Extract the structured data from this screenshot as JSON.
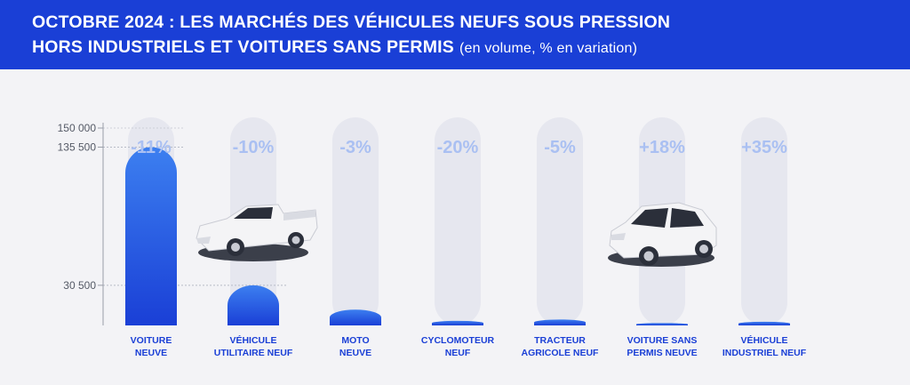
{
  "header": {
    "title_line1": "OCTOBRE 2024 : LES MARCHÉS DES VÉHICULES NEUFS SOUS PRESSION",
    "title_line2": "HORS INDUSTRIELS ET VOITURES SANS PERMIS",
    "subtitle": "(en volume, % en variation)"
  },
  "colors": {
    "banner": "#1a3fd6",
    "bar_top": "#3c7ff0",
    "bar_bottom": "#1a3fd6",
    "pill": "#e6e7ef",
    "pct": "#aac0f2"
  },
  "illustrations": [
    "pickup-truck-icon",
    "city-car-icon"
  ],
  "chart_data": {
    "type": "bar",
    "categories": [
      [
        "VOITURE",
        "NEUVE"
      ],
      [
        "VÉHICULE",
        "UTILITAIRE NEUF"
      ],
      [
        "MOTO",
        "NEUVE"
      ],
      [
        "CYCLOMOTEUR",
        "NEUF"
      ],
      [
        "TRACTEUR",
        "AGRICOLE NEUF"
      ],
      [
        "VOITURE SANS",
        "PERMIS NEUVE"
      ],
      [
        "VÉHICULE",
        "INDUSTRIEL NEUF"
      ]
    ],
    "values": [
      135500,
      30500,
      12000,
      3500,
      4500,
      1800,
      2800
    ],
    "variations": [
      "-11%",
      "-10%",
      "-3%",
      "-20%",
      "-5%",
      "+18%",
      "+35%"
    ],
    "yticks": [
      {
        "value": 150000,
        "label": "150 000"
      },
      {
        "value": 135500,
        "label": "135 500"
      },
      {
        "value": 30500,
        "label": "30 500"
      }
    ],
    "ylim": [
      0,
      150000
    ]
  }
}
